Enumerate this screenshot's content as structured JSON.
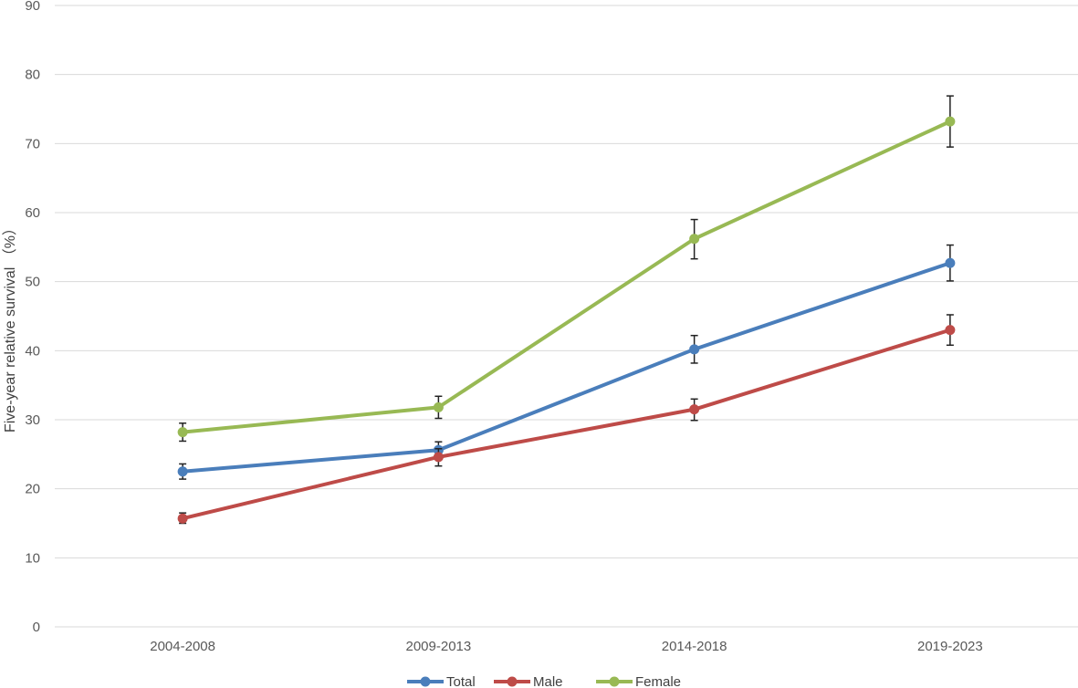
{
  "chart_data": {
    "type": "line",
    "title": "",
    "xlabel": "",
    "ylabel": "Five-year relative survival （%）",
    "ylim": [
      0,
      90
    ],
    "yticks": [
      0,
      10,
      20,
      30,
      40,
      50,
      60,
      70,
      80,
      90
    ],
    "grid": true,
    "legend_position": "bottom",
    "categories": [
      "2004-2008",
      "2009-2013",
      "2014-2018",
      "2019-2023"
    ],
    "series": [
      {
        "name": "Total",
        "color": "#4a7ebb",
        "values": [
          22.5,
          25.6,
          40.2,
          52.7
        ],
        "error_low": [
          21.4,
          24.5,
          38.2,
          50.1
        ],
        "error_high": [
          23.6,
          26.8,
          42.2,
          55.3
        ]
      },
      {
        "name": "Male",
        "color": "#be4b48",
        "values": [
          15.7,
          24.6,
          31.5,
          43.0
        ],
        "error_low": [
          15.0,
          23.3,
          29.9,
          40.8
        ],
        "error_high": [
          16.5,
          25.8,
          33.0,
          45.2
        ]
      },
      {
        "name": "Female",
        "color": "#98b954",
        "values": [
          28.2,
          31.8,
          56.2,
          73.2
        ],
        "error_low": [
          26.9,
          30.2,
          53.3,
          69.5
        ],
        "error_high": [
          29.5,
          33.4,
          59.0,
          76.9
        ]
      }
    ]
  }
}
